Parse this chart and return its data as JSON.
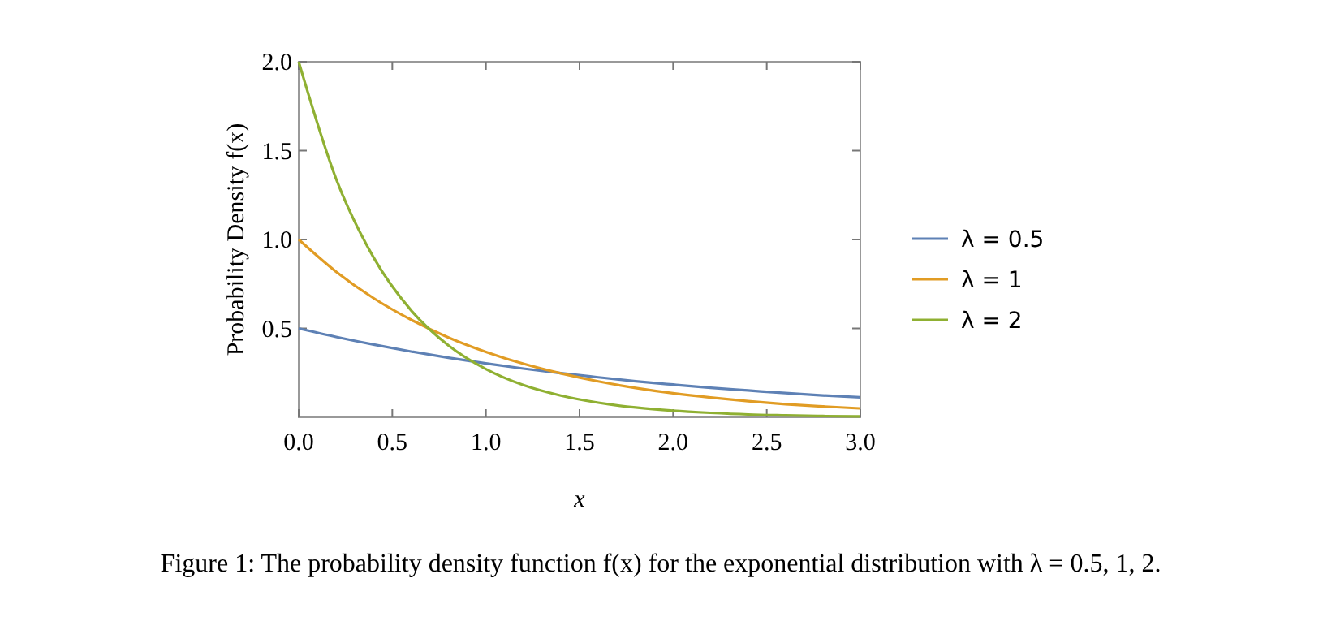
{
  "chart_data": {
    "type": "line",
    "xlabel": "x",
    "ylabel": "Probability Density  f(x)",
    "x": [
      0,
      0.2,
      0.4,
      0.6,
      0.8,
      1.0,
      1.2,
      1.4,
      1.6,
      1.8,
      2.0,
      2.2,
      2.4,
      2.6,
      2.8,
      3.0
    ],
    "series": [
      {
        "name": "λ = 0.5",
        "color": "#5e81b5",
        "values": [
          0.5,
          0.452,
          0.409,
          0.37,
          0.335,
          0.303,
          0.274,
          0.248,
          0.225,
          0.203,
          0.184,
          0.166,
          0.151,
          0.136,
          0.123,
          0.112
        ]
      },
      {
        "name": "λ = 1",
        "color": "#e19c24",
        "values": [
          1,
          0.819,
          0.67,
          0.549,
          0.449,
          0.368,
          0.301,
          0.247,
          0.202,
          0.165,
          0.135,
          0.111,
          0.091,
          0.074,
          0.061,
          0.05
        ]
      },
      {
        "name": "λ = 2",
        "color": "#8fb032",
        "values": [
          2,
          1.341,
          0.899,
          0.602,
          0.404,
          0.271,
          0.181,
          0.122,
          0.082,
          0.055,
          0.037,
          0.025,
          0.016,
          0.011,
          0.007,
          0.005
        ]
      }
    ],
    "xlim": [
      0,
      3
    ],
    "ylim": [
      0,
      2
    ],
    "xticks": [
      {
        "value": 0,
        "label": "0.0"
      },
      0.5,
      {
        "value": 1,
        "label": "1.0"
      },
      1.5,
      {
        "value": 2,
        "label": "2.0"
      },
      2.5,
      {
        "value": 3,
        "label": "3.0"
      }
    ],
    "yticks": [
      0.5,
      {
        "value": 1,
        "label": "1.0"
      },
      1.5,
      {
        "value": 2,
        "label": "2.0"
      }
    ],
    "legend": "right",
    "grid": false,
    "marker": "none",
    "line_style": "solid",
    "annotations": [
      "Figure 1: The probability density function f(x) for the exponential distribution with λ = 0.5, 1, 2."
    ]
  }
}
